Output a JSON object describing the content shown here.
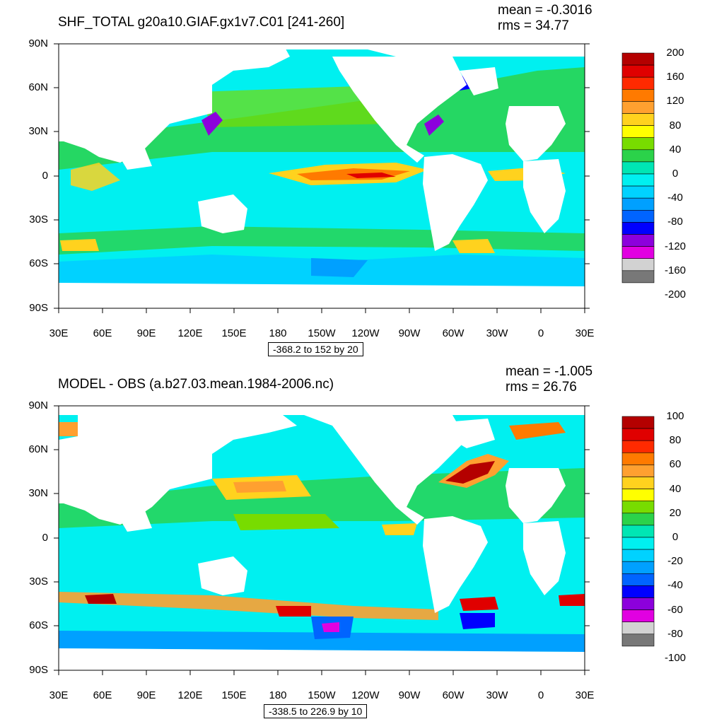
{
  "panels": [
    {
      "title": "SHF_TOTAL g20a10.GIAF.gx1v7.C01 [241-260]",
      "mean": "mean = -0.3016",
      "rms": "rms = 34.77",
      "contour_info": "-368.2 to 152 by 20",
      "colorbar_labels": [
        "200",
        "160",
        "120",
        "80",
        "40",
        "0",
        "-40",
        "-80",
        "-120",
        "-160",
        "-200"
      ],
      "colorbar_colors": [
        "#b40000",
        "#e00000",
        "#ff2a00",
        "#ff7a00",
        "#ffa030",
        "#ffd21e",
        "#ffff00",
        "#78dc00",
        "#2bd24a",
        "#00e6b4",
        "#00f0f0",
        "#00d2ff",
        "#00a0ff",
        "#0064ff",
        "#0000ff",
        "#8c00dc",
        "#e100e1",
        "#d2d2d2",
        "#787878"
      ]
    },
    {
      "title": "MODEL - OBS (a.b27.03.mean.1984-2006.nc)",
      "mean": "mean = -1.005",
      "rms": "rms = 26.76",
      "contour_info": "-338.5 to 226.9 by 10",
      "colorbar_labels": [
        "100",
        "80",
        "60",
        "40",
        "20",
        "0",
        "-20",
        "-40",
        "-60",
        "-80",
        "-100"
      ],
      "colorbar_colors": [
        "#b40000",
        "#e00000",
        "#ff2a00",
        "#ff7a00",
        "#ffa030",
        "#ffd21e",
        "#ffff00",
        "#78dc00",
        "#2bd24a",
        "#00e6b4",
        "#00f0f0",
        "#00d2ff",
        "#00a0ff",
        "#0064ff",
        "#0000ff",
        "#8c00dc",
        "#e100e1",
        "#d2d2d2",
        "#787878"
      ]
    }
  ],
  "lat_labels": [
    "90N",
    "60N",
    "30N",
    "0",
    "30S",
    "60S",
    "90S"
  ],
  "lon_labels": [
    "30E",
    "60E",
    "90E",
    "120E",
    "150E",
    "180",
    "150W",
    "120W",
    "90W",
    "60W",
    "30W",
    "0",
    "30E"
  ]
}
